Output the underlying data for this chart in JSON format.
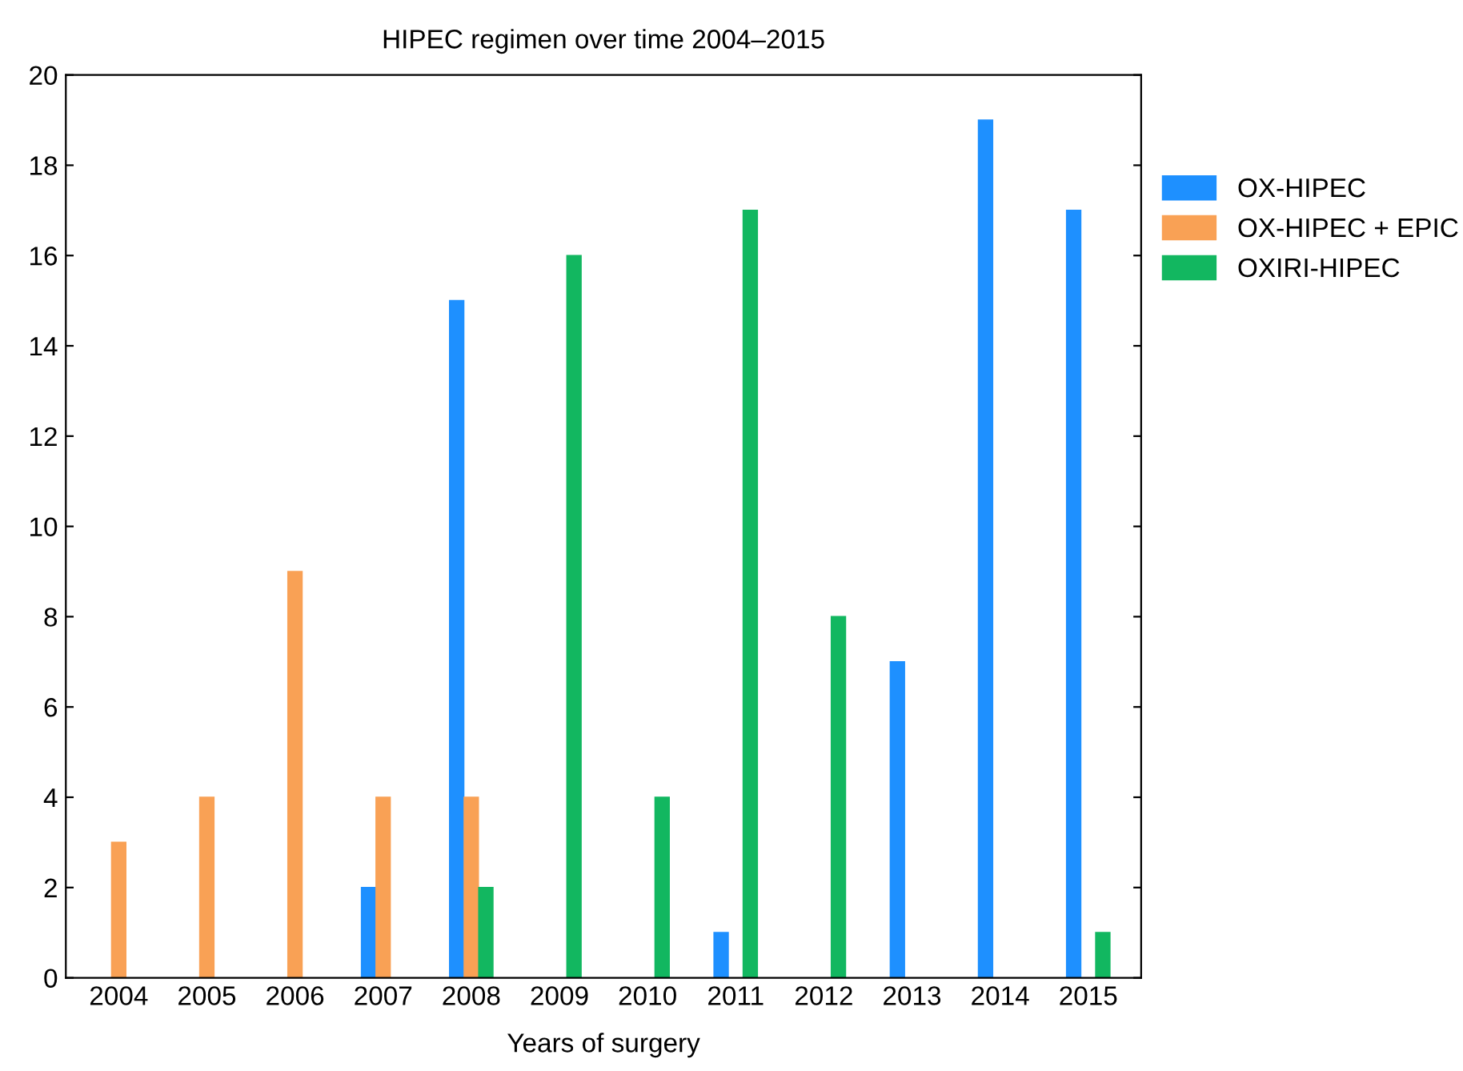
{
  "chart_data": {
    "type": "bar",
    "title": "HIPEC regimen over time 2004–2015",
    "xlabel": "Years of surgery",
    "categories": [
      "2004",
      "2005",
      "2006",
      "2007",
      "2008",
      "2009",
      "2010",
      "2011",
      "2012",
      "2013",
      "2014",
      "2015"
    ],
    "series": [
      {
        "name": "OX-HIPEC",
        "color": "#1e90ff",
        "values": [
          null,
          null,
          null,
          2,
          15,
          null,
          null,
          1,
          null,
          7,
          19,
          17
        ]
      },
      {
        "name": "OX-HIPEC + EPIC",
        "color": "#f9a155",
        "values": [
          3,
          4,
          9,
          4,
          4,
          null,
          null,
          null,
          null,
          null,
          null,
          null
        ]
      },
      {
        "name": "OXIRI-HIPEC",
        "color": "#12b760",
        "values": [
          null,
          null,
          null,
          null,
          2,
          16,
          4,
          17,
          8,
          null,
          null,
          1
        ]
      }
    ],
    "ylim": [
      0,
      20
    ],
    "yticks": [
      0,
      2,
      4,
      6,
      8,
      10,
      12,
      14,
      16,
      18,
      20
    ],
    "grid": false,
    "legend": "top right"
  }
}
